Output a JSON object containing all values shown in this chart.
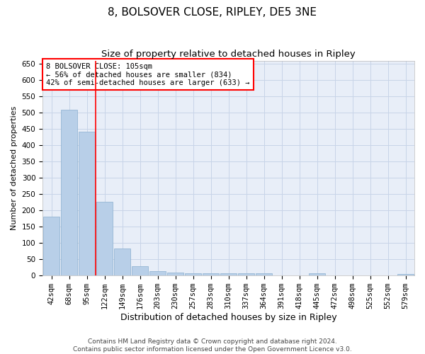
{
  "title": "8, BOLSOVER CLOSE, RIPLEY, DE5 3NE",
  "subtitle": "Size of property relative to detached houses in Ripley",
  "xlabel": "Distribution of detached houses by size in Ripley",
  "ylabel": "Number of detached properties",
  "categories": [
    "42sqm",
    "68sqm",
    "95sqm",
    "122sqm",
    "149sqm",
    "176sqm",
    "203sqm",
    "230sqm",
    "257sqm",
    "283sqm",
    "310sqm",
    "337sqm",
    "364sqm",
    "391sqm",
    "418sqm",
    "445sqm",
    "472sqm",
    "498sqm",
    "525sqm",
    "552sqm",
    "579sqm"
  ],
  "values": [
    181,
    510,
    441,
    226,
    84,
    28,
    14,
    9,
    7,
    7,
    7,
    7,
    8,
    0,
    0,
    6,
    0,
    0,
    0,
    0,
    5
  ],
  "bar_color": "#b8cfe8",
  "bar_edge_color": "#8aaece",
  "grid_color": "#c8d4e8",
  "background_color": "#e8eef8",
  "vline_after_index": 2,
  "vline_color": "red",
  "annotation_text": "8 BOLSOVER CLOSE: 105sqm\n← 56% of detached houses are smaller (834)\n42% of semi-detached houses are larger (633) →",
  "annotation_box_facecolor": "white",
  "annotation_box_edgecolor": "red",
  "ylim_max": 660,
  "yticks": [
    0,
    50,
    100,
    150,
    200,
    250,
    300,
    350,
    400,
    450,
    500,
    550,
    600,
    650
  ],
  "footer": "Contains HM Land Registry data © Crown copyright and database right 2024.\nContains public sector information licensed under the Open Government Licence v3.0.",
  "title_fontsize": 11,
  "subtitle_fontsize": 9.5,
  "xlabel_fontsize": 9,
  "ylabel_fontsize": 8,
  "tick_fontsize": 7.5,
  "annotation_fontsize": 7.5,
  "footer_fontsize": 6.5
}
